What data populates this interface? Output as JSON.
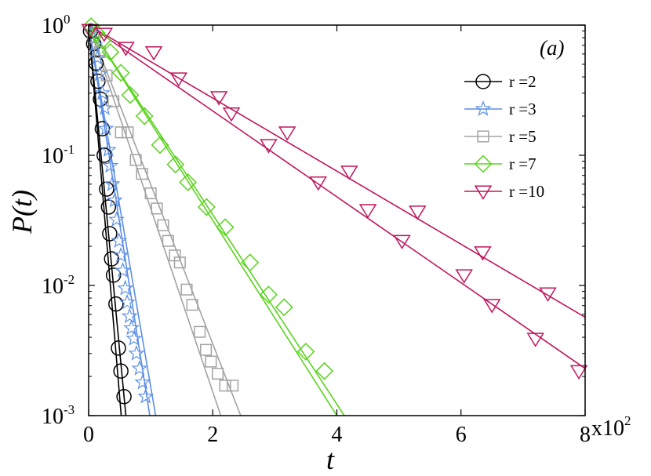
{
  "chart_data": {
    "type": "line",
    "panel_label": "(a)",
    "xlabel": "t",
    "ylabel": "P(t)",
    "x_multiplier_label": "x10",
    "x_multiplier_exp": "2",
    "xlim": [
      0,
      8
    ],
    "ylim": [
      0.001,
      1
    ],
    "yscale": "log",
    "xticks": [
      {
        "value": 0,
        "label": "0"
      },
      {
        "value": 2,
        "label": "2"
      },
      {
        "value": 4,
        "label": "4"
      },
      {
        "value": 6,
        "label": "6"
      },
      {
        "value": 8,
        "label": "8"
      }
    ],
    "yticks": [
      {
        "value": 1,
        "base": "10",
        "exp": "0"
      },
      {
        "value": 0.1,
        "base": "10",
        "exp": "-1"
      },
      {
        "value": 0.01,
        "base": "10",
        "exp": "-2"
      },
      {
        "value": 0.001,
        "base": "10",
        "exp": "-3"
      }
    ],
    "legend_position": "top-right",
    "series": [
      {
        "name": "r =2",
        "marker": "circle",
        "color": "#000000",
        "points": [
          [
            0.03,
            0.9
          ],
          [
            0.08,
            0.72
          ],
          [
            0.12,
            0.51
          ],
          [
            0.15,
            0.37
          ],
          [
            0.19,
            0.27
          ],
          [
            0.22,
            0.16
          ],
          [
            0.25,
            0.1
          ],
          [
            0.29,
            0.055
          ],
          [
            0.32,
            0.04
          ],
          [
            0.34,
            0.025
          ],
          [
            0.37,
            0.016
          ],
          [
            0.4,
            0.012
          ],
          [
            0.44,
            0.0072
          ],
          [
            0.48,
            0.0033
          ],
          [
            0.52,
            0.0022
          ],
          [
            0.57,
            0.0014
          ]
        ],
        "fits": [
          [
            [
              0,
              1
            ],
            [
              0.525,
              0.001
            ]
          ],
          [
            [
              0,
              1
            ],
            [
              0.6,
              0.001
            ]
          ]
        ]
      },
      {
        "name": "r =3",
        "marker": "star",
        "color": "#5b8ee6",
        "points": [
          [
            0.05,
            0.88
          ],
          [
            0.1,
            0.7
          ],
          [
            0.14,
            0.56
          ],
          [
            0.18,
            0.42
          ],
          [
            0.22,
            0.3
          ],
          [
            0.26,
            0.23
          ],
          [
            0.28,
            0.16
          ],
          [
            0.32,
            0.11
          ],
          [
            0.35,
            0.083
          ],
          [
            0.38,
            0.06
          ],
          [
            0.42,
            0.045
          ],
          [
            0.45,
            0.032
          ],
          [
            0.49,
            0.022
          ],
          [
            0.52,
            0.017
          ],
          [
            0.55,
            0.013
          ],
          [
            0.59,
            0.0095
          ],
          [
            0.62,
            0.0074
          ],
          [
            0.66,
            0.0058
          ],
          [
            0.69,
            0.0047
          ],
          [
            0.73,
            0.0039
          ],
          [
            0.77,
            0.003
          ],
          [
            0.82,
            0.0023
          ],
          [
            0.87,
            0.0018
          ],
          [
            0.92,
            0.0014
          ]
        ],
        "fits": [
          [
            [
              0,
              1
            ],
            [
              0.985,
              0.001
            ]
          ],
          [
            [
              0,
              1
            ],
            [
              1.08,
              0.001
            ]
          ]
        ]
      },
      {
        "name": "r =5",
        "marker": "square",
        "color": "#a3a3a3",
        "points": [
          [
            0.08,
            0.81
          ],
          [
            0.18,
            0.62
          ],
          [
            0.29,
            0.41
          ],
          [
            0.4,
            0.26
          ],
          [
            0.52,
            0.15
          ],
          [
            0.63,
            0.15
          ],
          [
            0.76,
            0.092
          ],
          [
            0.86,
            0.072
          ],
          [
            1.0,
            0.051
          ],
          [
            1.1,
            0.039
          ],
          [
            1.2,
            0.029
          ],
          [
            1.28,
            0.022
          ],
          [
            1.39,
            0.017
          ],
          [
            1.47,
            0.015
          ],
          [
            1.58,
            0.0093
          ],
          [
            1.67,
            0.0071
          ],
          [
            1.79,
            0.0044
          ],
          [
            1.89,
            0.0032
          ],
          [
            1.97,
            0.0026
          ],
          [
            2.08,
            0.0021
          ],
          [
            2.2,
            0.0017
          ],
          [
            2.32,
            0.0017
          ]
        ],
        "fits": [
          [
            [
              0,
              1
            ],
            [
              2.13,
              0.001
            ]
          ],
          [
            [
              0,
              1
            ],
            [
              2.45,
              0.001
            ]
          ]
        ]
      },
      {
        "name": "r =7",
        "marker": "diamond",
        "color": "#5ad31e",
        "points": [
          [
            0.04,
            0.98
          ],
          [
            0.13,
            0.87
          ],
          [
            0.22,
            0.76
          ],
          [
            0.35,
            0.62
          ],
          [
            0.52,
            0.43
          ],
          [
            0.67,
            0.29
          ],
          [
            0.9,
            0.2
          ],
          [
            1.15,
            0.12
          ],
          [
            1.4,
            0.085
          ],
          [
            1.6,
            0.062
          ],
          [
            1.9,
            0.04
          ],
          [
            2.2,
            0.028
          ],
          [
            2.6,
            0.015
          ],
          [
            2.9,
            0.0085
          ],
          [
            3.15,
            0.0068
          ],
          [
            3.5,
            0.0031
          ],
          [
            3.8,
            0.0022
          ]
        ],
        "fits": [
          [
            [
              0,
              1
            ],
            [
              4.0,
              0.001
            ]
          ],
          [
            [
              0,
              1
            ],
            [
              4.12,
              0.001
            ]
          ]
        ]
      },
      {
        "name": "r =10",
        "marker": "triangle-down",
        "color": "#c0165e",
        "points": [
          [
            0.02,
            0.92
          ],
          [
            0.25,
            0.86
          ],
          [
            0.6,
            0.67
          ],
          [
            1.05,
            0.62
          ],
          [
            1.45,
            0.39
          ],
          [
            2.1,
            0.28
          ],
          [
            2.3,
            0.21
          ],
          [
            2.9,
            0.12
          ],
          [
            3.2,
            0.15
          ],
          [
            3.7,
            0.062
          ],
          [
            4.2,
            0.075
          ],
          [
            4.5,
            0.038
          ],
          [
            5.05,
            0.022
          ],
          [
            5.3,
            0.037
          ],
          [
            6.05,
            0.012
          ],
          [
            6.35,
            0.018
          ],
          [
            6.5,
            0.0071
          ],
          [
            7.2,
            0.0039
          ],
          [
            7.4,
            0.0087
          ],
          [
            7.9,
            0.0022
          ]
        ],
        "fits": [
          [
            [
              0,
              1
            ],
            [
              8.0,
              0.0057
            ]
          ],
          [
            [
              0,
              1
            ],
            [
              8.0,
              0.0023
            ]
          ]
        ]
      }
    ]
  }
}
